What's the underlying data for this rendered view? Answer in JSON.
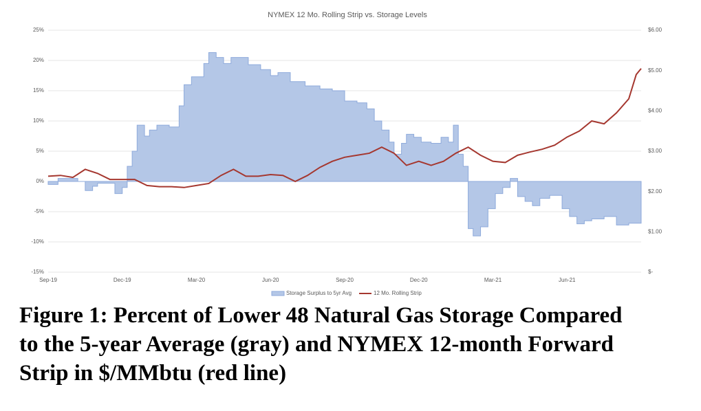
{
  "chart_data": {
    "type": "step-area-line",
    "title": "NYMEX 12 Mo. Rolling Strip vs. Storage Levels",
    "caption": "Figure 1: Percent of Lower 48 Natural Gas Storage Compared to the 5-year Average (gray) and NYMEX 12-month Forward Strip in $/MMbtu (red line)",
    "xlim": [
      0,
      24
    ],
    "xticks": [
      {
        "value": 0,
        "label": "Sep-19"
      },
      {
        "value": 3,
        "label": "Dec-19"
      },
      {
        "value": 6,
        "label": "Mar-20"
      },
      {
        "value": 9,
        "label": "Jun-20"
      },
      {
        "value": 12,
        "label": "Sep-20"
      },
      {
        "value": 15,
        "label": "Dec-20"
      },
      {
        "value": 18,
        "label": "Mar-21"
      },
      {
        "value": 21,
        "label": "Jun-21"
      }
    ],
    "ylim": [
      -15,
      25
    ],
    "yticks": [
      {
        "value": -15,
        "label": "-15%"
      },
      {
        "value": -10,
        "label": "-10%"
      },
      {
        "value": -5,
        "label": "-5%"
      },
      {
        "value": 0,
        "label": "0%"
      },
      {
        "value": 5,
        "label": "5%"
      },
      {
        "value": 10,
        "label": "10%"
      },
      {
        "value": 15,
        "label": "15%"
      },
      {
        "value": 20,
        "label": "20%"
      },
      {
        "value": 25,
        "label": "25%"
      }
    ],
    "y2lim": [
      0,
      6
    ],
    "y2ticks": [
      {
        "value": 0,
        "label": "$-"
      },
      {
        "value": 1,
        "label": "$1.00"
      },
      {
        "value": 2,
        "label": "$2.00"
      },
      {
        "value": 3,
        "label": "$3.00"
      },
      {
        "value": 4,
        "label": "$4.00"
      },
      {
        "value": 5,
        "label": "$5.00"
      },
      {
        "value": 6,
        "label": "$6.00"
      }
    ],
    "grid": true,
    "legend": "bottom",
    "series": [
      {
        "name": "Storage Surplus to 5yr Avg",
        "color": "#b4c7e7",
        "edge": "#8eaadb",
        "kind": "step-area",
        "x": [
          0,
          0.4,
          1.2,
          1.5,
          1.8,
          2.0,
          2.7,
          3.0,
          3.2,
          3.4,
          3.6,
          3.9,
          4.1,
          4.4,
          4.9,
          5.3,
          5.5,
          5.8,
          6.3,
          6.5,
          6.8,
          7.1,
          7.4,
          8.1,
          8.6,
          9.0,
          9.3,
          9.8,
          10.4,
          11.0,
          11.5,
          12.0,
          12.5,
          12.9,
          13.2,
          13.5,
          13.8,
          14.0,
          14.3,
          14.5,
          14.8,
          15.1,
          15.5,
          15.9,
          16.2,
          16.4,
          16.6,
          16.8,
          17.0,
          17.2,
          17.5,
          17.8,
          18.1,
          18.4,
          18.7,
          19.0,
          19.3,
          19.6,
          19.9,
          20.3,
          20.8,
          21.1,
          21.4,
          21.7,
          22.0,
          22.5,
          23.0,
          23.5
        ],
        "values": [
          -0.5,
          0.5,
          0,
          -1.5,
          -0.8,
          -0.3,
          -2,
          -1,
          2.5,
          5,
          9.3,
          7.5,
          8.5,
          9.3,
          9,
          12.5,
          16,
          17.3,
          19.5,
          21.3,
          20.5,
          19.5,
          20.5,
          19.3,
          18.5,
          17.5,
          18,
          16.5,
          15.8,
          15.3,
          15,
          13.3,
          13,
          12,
          10,
          8.5,
          6.5,
          4.5,
          6.3,
          7.8,
          7.3,
          6.5,
          6.3,
          7.3,
          6.5,
          9.3,
          4.5,
          2.5,
          -7.8,
          -9,
          -7.5,
          -4.5,
          -2,
          -1,
          0.5,
          -2.5,
          -3.3,
          -4,
          -2.8,
          -2.3,
          -4.5,
          -5.8,
          -7,
          -6.5,
          -6.2,
          -5.8,
          -7.2,
          -6.9
        ]
      },
      {
        "name": "12 Mo. Rolling Strip",
        "color": "#a5372f",
        "kind": "line",
        "axis": "y2",
        "x": [
          0,
          0.5,
          1,
          1.5,
          2,
          2.5,
          3,
          3.5,
          4,
          4.5,
          5,
          5.5,
          6,
          6.5,
          7,
          7.5,
          8,
          8.5,
          9,
          9.5,
          10,
          10.5,
          11,
          11.5,
          12,
          12.5,
          13,
          13.5,
          14,
          14.5,
          15,
          15.5,
          16,
          16.5,
          17,
          17.5,
          18,
          18.5,
          19,
          19.5,
          20,
          20.5,
          21,
          21.5,
          22,
          22.5,
          23,
          23.5,
          23.8,
          24
        ],
        "values": [
          2.38,
          2.4,
          2.35,
          2.55,
          2.45,
          2.3,
          2.3,
          2.3,
          2.15,
          2.12,
          2.12,
          2.1,
          2.15,
          2.2,
          2.4,
          2.55,
          2.38,
          2.38,
          2.42,
          2.4,
          2.25,
          2.4,
          2.6,
          2.75,
          2.85,
          2.9,
          2.95,
          3.1,
          2.95,
          2.65,
          2.75,
          2.65,
          2.75,
          2.95,
          3.1,
          2.9,
          2.75,
          2.72,
          2.9,
          2.98,
          3.05,
          3.15,
          3.35,
          3.5,
          3.75,
          3.68,
          3.95,
          4.3,
          4.9,
          5.05
        ]
      }
    ]
  }
}
